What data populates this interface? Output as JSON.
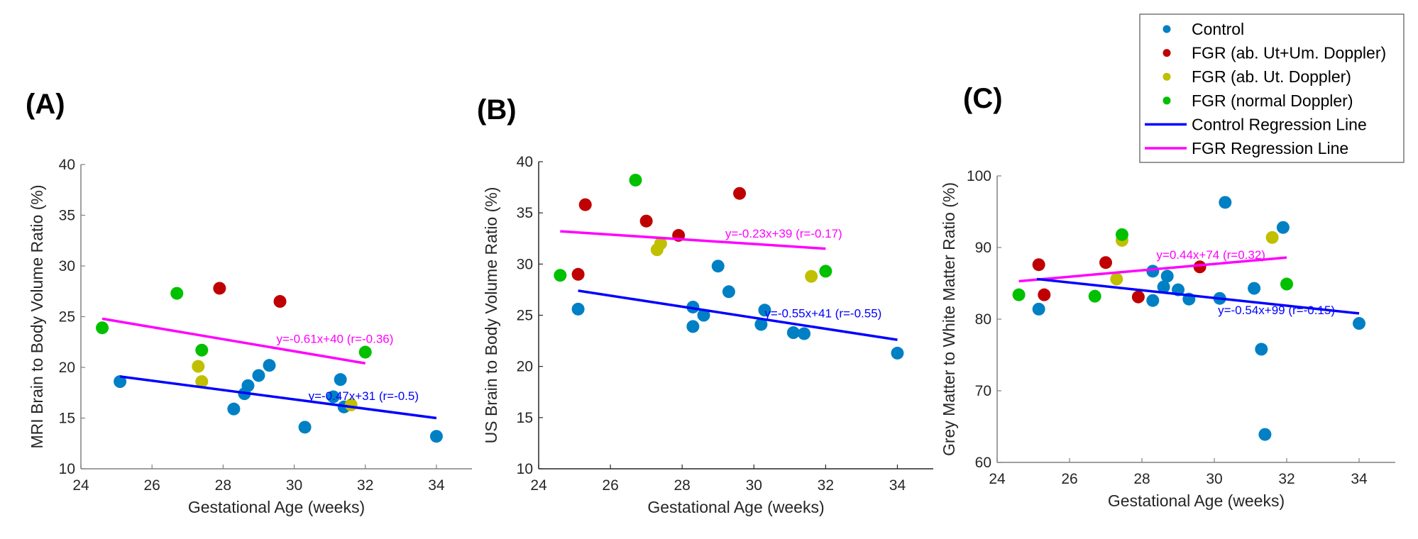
{
  "legend": {
    "items": [
      {
        "label": "Control",
        "kind": "marker",
        "color": "#0080c4"
      },
      {
        "label": "FGR (ab. Ut+Um. Doppler)",
        "kind": "marker",
        "color": "#c00000"
      },
      {
        "label": "FGR (ab. Ut. Doppler)",
        "kind": "marker",
        "color": "#c0c000"
      },
      {
        "label": "FGR (normal Doppler)",
        "kind": "marker",
        "color": "#00c000"
      },
      {
        "label": "Control Regression Line",
        "kind": "line",
        "color": "#0000ff"
      },
      {
        "label": "FGR Regression Line",
        "kind": "line",
        "color": "#ff00ff"
      }
    ]
  },
  "chart_data": [
    {
      "type": "scatter",
      "panel_label": "(A)",
      "xlabel": "Gestational Age (weeks)",
      "ylabel": "MRI Brain to Body Volume Ratio (%)",
      "xlim": [
        24,
        35
      ],
      "ylim": [
        10,
        40
      ],
      "xticks": [
        "24",
        "26",
        "28",
        "30",
        "32",
        "34"
      ],
      "yticks": [
        "10",
        "15",
        "20",
        "25",
        "30",
        "35",
        "40"
      ],
      "series": [
        {
          "name": "Control",
          "color": "#0080c4",
          "points": [
            [
              25.1,
              18.6
            ],
            [
              28.3,
              15.9
            ],
            [
              28.6,
              17.4
            ],
            [
              28.7,
              18.2
            ],
            [
              29.0,
              19.2
            ],
            [
              29.3,
              20.2
            ],
            [
              30.3,
              14.1
            ],
            [
              31.1,
              17.1
            ],
            [
              31.3,
              18.8
            ],
            [
              31.4,
              16.1
            ],
            [
              34.0,
              13.2
            ]
          ]
        },
        {
          "name": "FGR (ab. Ut+Um. Doppler)",
          "color": "#c00000",
          "points": [
            [
              27.9,
              27.8
            ],
            [
              29.6,
              26.5
            ]
          ]
        },
        {
          "name": "FGR (ab. Ut. Doppler)",
          "color": "#c0c000",
          "points": [
            [
              27.3,
              20.1
            ],
            [
              27.4,
              18.6
            ],
            [
              31.6,
              16.3
            ]
          ]
        },
        {
          "name": "FGR (normal Doppler)",
          "color": "#00c000",
          "points": [
            [
              24.6,
              23.9
            ],
            [
              26.7,
              27.3
            ],
            [
              27.4,
              21.7
            ],
            [
              32.0,
              21.5
            ]
          ]
        }
      ],
      "regression": [
        {
          "name": "FGR Regression Line",
          "color": "#ff00ff",
          "from": [
            24.6,
            24.8
          ],
          "to": [
            32.0,
            20.4
          ],
          "label": "y=-0.61x+40 (r=-0.36)",
          "label_at": [
            29.5,
            22.4
          ]
        },
        {
          "name": "Control Regression Line",
          "color": "#0000ff",
          "from": [
            25.1,
            19.1
          ],
          "to": [
            34.0,
            15.0
          ],
          "label": "y=-0.47x+31 (r=-0.5)",
          "label_at": [
            30.4,
            16.8
          ]
        }
      ]
    },
    {
      "type": "scatter",
      "panel_label": "(B)",
      "xlabel": "Gestational Age (weeks)",
      "ylabel": "US Brain to Body Volume Ratio (%)",
      "xlim": [
        24,
        35
      ],
      "ylim": [
        10,
        40
      ],
      "xticks": [
        "24",
        "26",
        "28",
        "30",
        "32",
        "34"
      ],
      "yticks": [
        "10",
        "15",
        "20",
        "25",
        "30",
        "35",
        "40"
      ],
      "series": [
        {
          "name": "Control",
          "color": "#0080c4",
          "points": [
            [
              25.1,
              25.6
            ],
            [
              28.3,
              25.8
            ],
            [
              28.3,
              23.9
            ],
            [
              28.6,
              25.0
            ],
            [
              29.0,
              29.8
            ],
            [
              29.3,
              27.3
            ],
            [
              30.2,
              24.1
            ],
            [
              30.3,
              25.5
            ],
            [
              31.1,
              23.3
            ],
            [
              31.4,
              23.2
            ],
            [
              34.0,
              21.3
            ]
          ]
        },
        {
          "name": "FGR (ab. Ut+Um. Doppler)",
          "color": "#c00000",
          "points": [
            [
              25.1,
              29.0
            ],
            [
              25.3,
              35.8
            ],
            [
              27.0,
              34.2
            ],
            [
              27.9,
              32.8
            ],
            [
              29.6,
              36.9
            ]
          ]
        },
        {
          "name": "FGR (ab. Ut. Doppler)",
          "color": "#c0c000",
          "points": [
            [
              27.3,
              31.4
            ],
            [
              27.4,
              32.0
            ],
            [
              31.6,
              28.8
            ]
          ]
        },
        {
          "name": "FGR (normal Doppler)",
          "color": "#00c000",
          "points": [
            [
              24.6,
              28.9
            ],
            [
              26.7,
              38.2
            ],
            [
              32.0,
              29.3
            ]
          ]
        }
      ],
      "regression": [
        {
          "name": "FGR Regression Line",
          "color": "#ff00ff",
          "from": [
            24.6,
            33.2
          ],
          "to": [
            32.0,
            31.5
          ],
          "label": "y=-0.23x+39 (r=-0.17)",
          "label_at": [
            29.2,
            32.6
          ]
        },
        {
          "name": "Control Regression Line",
          "color": "#0000ff",
          "from": [
            25.1,
            27.4
          ],
          "to": [
            34.0,
            22.6
          ],
          "label": "y=-0.55x+41 (r=-0.55)",
          "label_at": [
            30.3,
            24.8
          ]
        }
      ]
    },
    {
      "type": "scatter",
      "panel_label": "(C)",
      "xlabel": "Gestational Age (weeks)",
      "ylabel": "Grey Matter to White Matter Ratio (%)",
      "xlim": [
        24,
        35
      ],
      "ylim": [
        60,
        100
      ],
      "xticks": [
        "24",
        "26",
        "28",
        "30",
        "32",
        "34"
      ],
      "yticks": [
        "60",
        "70",
        "80",
        "90",
        "100"
      ],
      "series": [
        {
          "name": "Control",
          "color": "#0080c4",
          "points": [
            [
              25.15,
              81.4
            ],
            [
              28.3,
              86.7
            ],
            [
              28.3,
              82.6
            ],
            [
              28.6,
              84.5
            ],
            [
              28.7,
              86.0
            ],
            [
              29.0,
              84.1
            ],
            [
              29.3,
              82.8
            ],
            [
              30.15,
              82.9
            ],
            [
              30.3,
              96.3
            ],
            [
              31.1,
              84.3
            ],
            [
              31.3,
              75.8
            ],
            [
              31.4,
              63.9
            ],
            [
              31.9,
              92.8
            ],
            [
              34.0,
              79.4
            ]
          ]
        },
        {
          "name": "FGR (ab. Ut+Um. Doppler)",
          "color": "#c00000",
          "points": [
            [
              25.15,
              87.6
            ],
            [
              25.3,
              83.4
            ],
            [
              27.0,
              87.9
            ],
            [
              27.9,
              83.1
            ],
            [
              29.6,
              87.3
            ]
          ]
        },
        {
          "name": "FGR (ab. Ut. Doppler)",
          "color": "#c0c000",
          "points": [
            [
              27.3,
              85.6
            ],
            [
              27.45,
              91.0
            ],
            [
              31.6,
              91.4
            ]
          ]
        },
        {
          "name": "FGR (normal Doppler)",
          "color": "#00c000",
          "points": [
            [
              24.6,
              83.4
            ],
            [
              26.7,
              83.2
            ],
            [
              27.45,
              91.8
            ],
            [
              32.0,
              84.9
            ]
          ]
        }
      ],
      "regression": [
        {
          "name": "FGR Regression Line",
          "color": "#ff00ff",
          "from": [
            24.6,
            85.3
          ],
          "to": [
            32.0,
            88.6
          ],
          "label": "y=0.44x+74 (r=0.32)",
          "label_at": [
            28.4,
            88.4
          ]
        },
        {
          "name": "Control Regression Line",
          "color": "#0000ff",
          "from": [
            25.1,
            85.6
          ],
          "to": [
            34.0,
            80.8
          ],
          "label": "y=-0.54x+99 (r=-0.15)",
          "label_at": [
            30.1,
            80.7
          ]
        }
      ]
    }
  ]
}
